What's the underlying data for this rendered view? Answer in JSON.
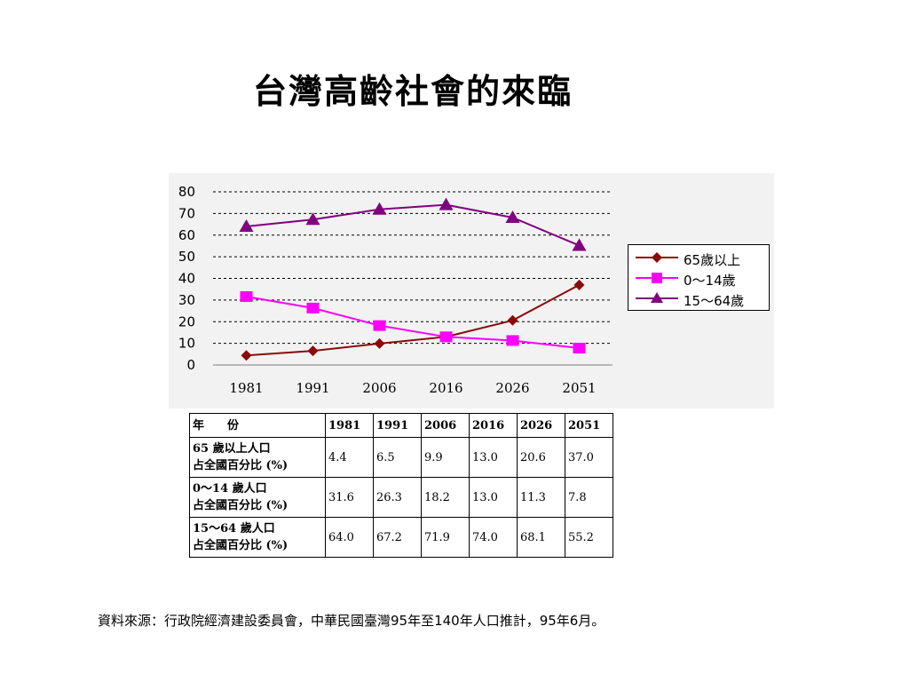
{
  "slide": {
    "title": "台灣高齡社會的來臨",
    "source_note": "資料來源：行政院經濟建設委員會，中華民國臺灣95年至140年人口推計，95年6月。"
  },
  "chart_data": {
    "type": "line",
    "categories": [
      "1981",
      "1991",
      "2006",
      "2016",
      "2026",
      "2051"
    ],
    "ylim": [
      0,
      80
    ],
    "yticks": [
      "0",
      "10",
      "20",
      "30",
      "40",
      "50",
      "60",
      "70",
      "80"
    ],
    "grid": true,
    "legend_position": "right",
    "series": [
      {
        "name": "65歲以上",
        "values": [
          4.4,
          6.5,
          9.9,
          13.0,
          20.6,
          37.0
        ],
        "color": "#8b0a0a",
        "marker": "diamond"
      },
      {
        "name": "0～14歲",
        "values": [
          31.6,
          26.3,
          18.2,
          13.0,
          11.3,
          7.8
        ],
        "color": "#ff00ff",
        "marker": "square"
      },
      {
        "name": "15～64歲",
        "values": [
          64.0,
          67.2,
          71.9,
          74.0,
          68.1,
          55.2
        ],
        "color": "#800080",
        "marker": "triangle"
      }
    ]
  },
  "table": {
    "header_label": "年　　份",
    "years": [
      "1981",
      "1991",
      "2006",
      "2016",
      "2026",
      "2051"
    ],
    "rows": [
      {
        "line1": "65 歲以上人口",
        "line2": "占全國百分比 (%)",
        "values": [
          "4.4",
          "6.5",
          "9.9",
          "13.0",
          "20.6",
          "37.0"
        ]
      },
      {
        "line1": "0～14 歲人口",
        "line2": "占全國百分比 (%)",
        "values": [
          "31.6",
          "26.3",
          "18.2",
          "13.0",
          "11.3",
          "7.8"
        ]
      },
      {
        "line1": "15～64 歲人口",
        "line2": "占全國百分比 (%)",
        "values": [
          "64.0",
          "67.2",
          "71.9",
          "74.0",
          "68.1",
          "55.2"
        ]
      }
    ]
  }
}
